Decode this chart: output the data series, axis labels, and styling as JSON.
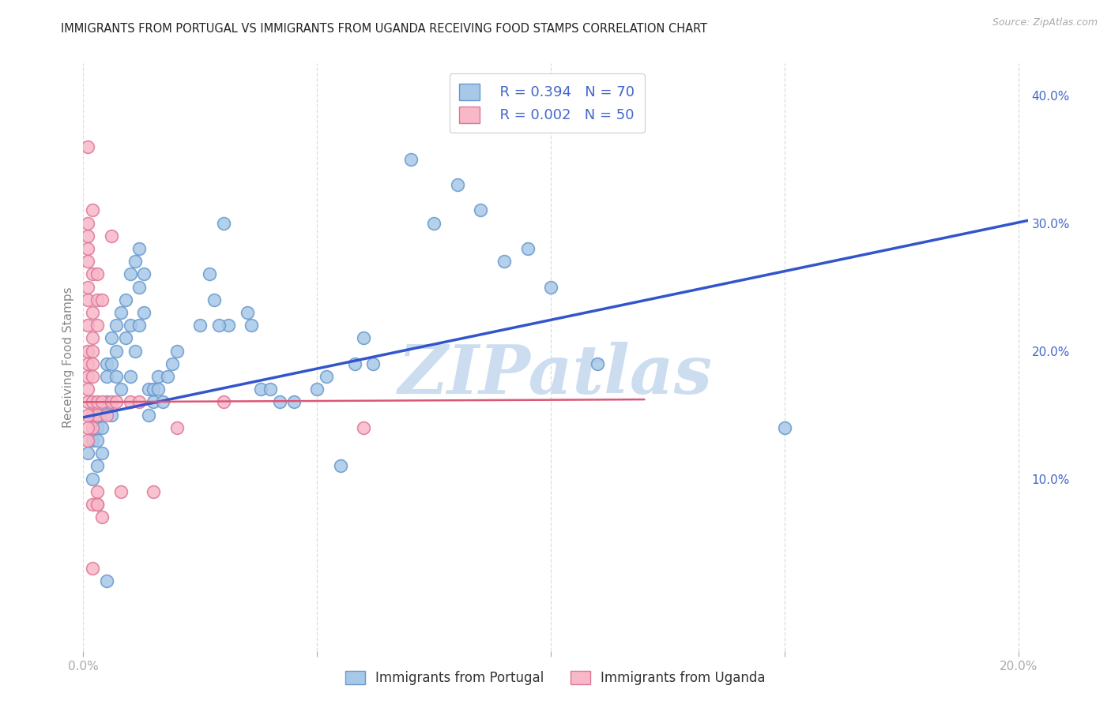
{
  "title": "IMMIGRANTS FROM PORTUGAL VS IMMIGRANTS FROM UGANDA RECEIVING FOOD STAMPS CORRELATION CHART",
  "source": "Source: ZipAtlas.com",
  "ylabel": "Receiving Food Stamps",
  "xlim": [
    0.0,
    0.202
  ],
  "ylim": [
    -0.035,
    0.425
  ],
  "portugal_color": "#a8c8e8",
  "portugal_edge": "#6699cc",
  "uganda_color": "#f8b8c8",
  "uganda_edge": "#dd7799",
  "line_portugal_color": "#3355cc",
  "line_uganda_color": "#dd5577",
  "right_tick_color": "#4466cc",
  "watermark_color": "#ccddf0",
  "grid_color": "#dddddd",
  "bg_color": "#ffffff",
  "title_color": "#222222",
  "tick_color": "#aaaaaa",
  "title_fontsize": 10.5,
  "legend_text_color": "#4466cc",
  "portugal_R": "0.394",
  "portugal_N": "70",
  "uganda_R": "0.002",
  "uganda_N": "50",
  "portugal_trend_x": [
    0.0,
    0.202
  ],
  "portugal_trend_y": [
    0.148,
    0.302
  ],
  "uganda_trend_x": [
    0.0,
    0.12
  ],
  "uganda_trend_y": [
    0.16,
    0.162
  ],
  "portugal_scatter_x": [
    0.001,
    0.002,
    0.002,
    0.003,
    0.003,
    0.003,
    0.004,
    0.004,
    0.004,
    0.005,
    0.005,
    0.005,
    0.006,
    0.006,
    0.006,
    0.007,
    0.007,
    0.007,
    0.008,
    0.008,
    0.009,
    0.009,
    0.01,
    0.01,
    0.01,
    0.011,
    0.011,
    0.012,
    0.012,
    0.012,
    0.013,
    0.013,
    0.014,
    0.014,
    0.015,
    0.015,
    0.016,
    0.016,
    0.017,
    0.018,
    0.019,
    0.02,
    0.025,
    0.027,
    0.028,
    0.03,
    0.031,
    0.035,
    0.038,
    0.04,
    0.042,
    0.045,
    0.05,
    0.055,
    0.058,
    0.06,
    0.062,
    0.07,
    0.075,
    0.08,
    0.085,
    0.09,
    0.095,
    0.1,
    0.11,
    0.15,
    0.005,
    0.029,
    0.036,
    0.052
  ],
  "portugal_scatter_y": [
    0.12,
    0.13,
    0.1,
    0.14,
    0.13,
    0.11,
    0.15,
    0.14,
    0.12,
    0.19,
    0.18,
    0.16,
    0.21,
    0.19,
    0.15,
    0.22,
    0.2,
    0.18,
    0.23,
    0.17,
    0.24,
    0.21,
    0.26,
    0.22,
    0.18,
    0.27,
    0.2,
    0.28,
    0.25,
    0.22,
    0.26,
    0.23,
    0.17,
    0.15,
    0.17,
    0.16,
    0.18,
    0.17,
    0.16,
    0.18,
    0.19,
    0.2,
    0.22,
    0.26,
    0.24,
    0.3,
    0.22,
    0.23,
    0.17,
    0.17,
    0.16,
    0.16,
    0.17,
    0.11,
    0.19,
    0.21,
    0.19,
    0.35,
    0.3,
    0.33,
    0.31,
    0.27,
    0.28,
    0.25,
    0.19,
    0.14,
    0.02,
    0.22,
    0.22,
    0.18
  ],
  "uganda_scatter_x": [
    0.001,
    0.001,
    0.001,
    0.001,
    0.001,
    0.001,
    0.001,
    0.001,
    0.001,
    0.001,
    0.001,
    0.001,
    0.001,
    0.002,
    0.002,
    0.002,
    0.002,
    0.002,
    0.002,
    0.002,
    0.002,
    0.002,
    0.002,
    0.003,
    0.003,
    0.003,
    0.003,
    0.003,
    0.003,
    0.003,
    0.004,
    0.004,
    0.005,
    0.006,
    0.006,
    0.007,
    0.008,
    0.01,
    0.012,
    0.015,
    0.02,
    0.03,
    0.06,
    0.001,
    0.001,
    0.002,
    0.003,
    0.004,
    0.001,
    0.002
  ],
  "uganda_scatter_y": [
    0.36,
    0.29,
    0.28,
    0.3,
    0.27,
    0.25,
    0.24,
    0.22,
    0.2,
    0.19,
    0.18,
    0.17,
    0.16,
    0.31,
    0.26,
    0.23,
    0.21,
    0.2,
    0.19,
    0.18,
    0.16,
    0.15,
    0.14,
    0.26,
    0.24,
    0.22,
    0.16,
    0.15,
    0.09,
    0.08,
    0.24,
    0.16,
    0.15,
    0.29,
    0.16,
    0.16,
    0.09,
    0.16,
    0.16,
    0.09,
    0.14,
    0.16,
    0.14,
    0.15,
    0.14,
    0.08,
    0.08,
    0.07,
    0.13,
    0.03
  ]
}
